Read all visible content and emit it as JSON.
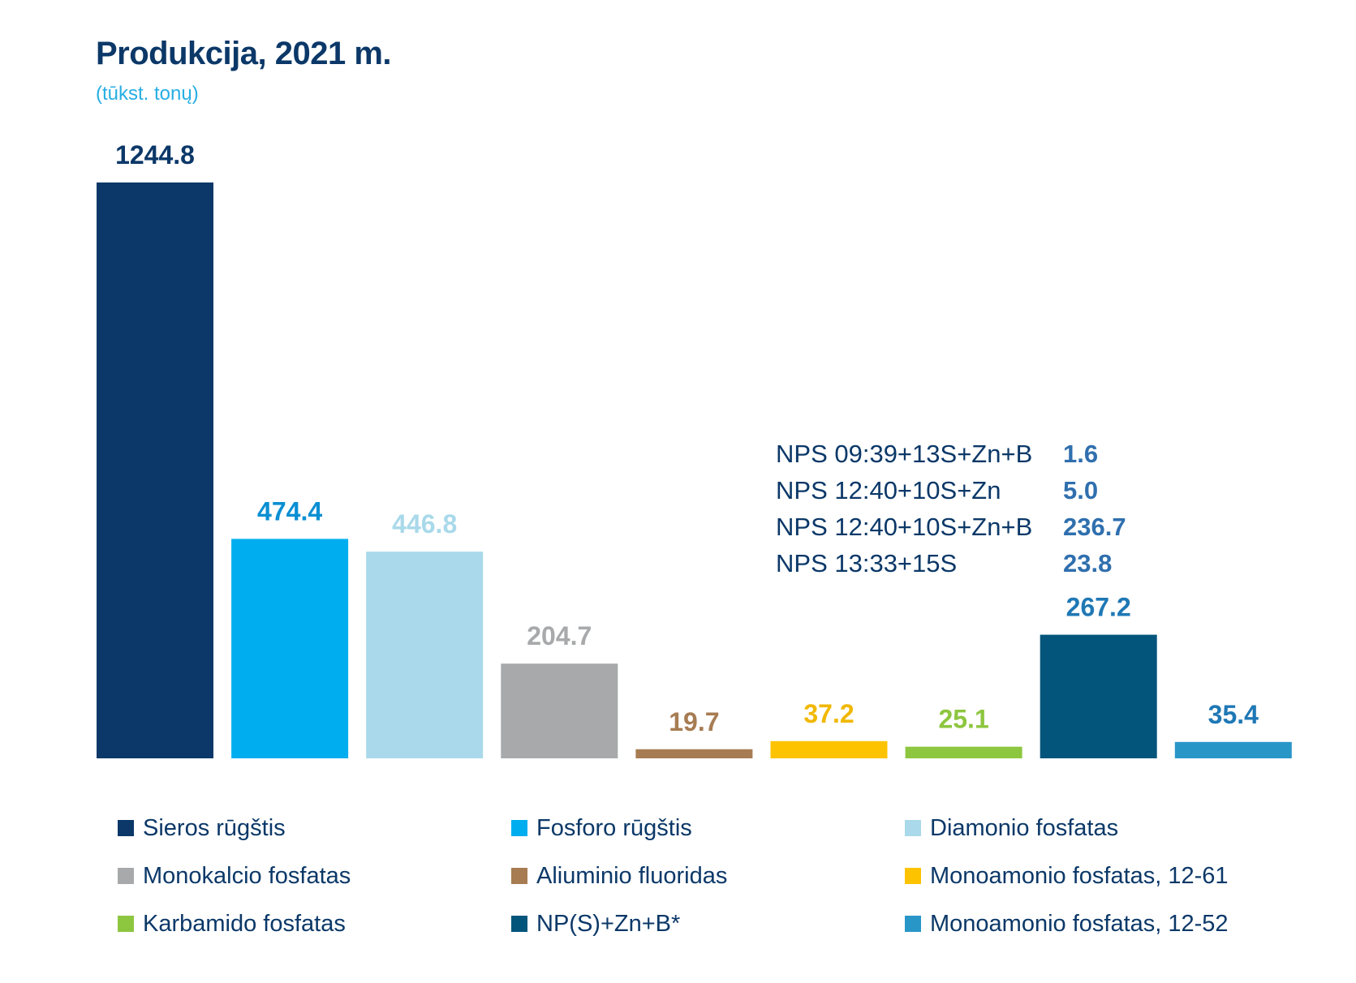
{
  "chart_data": {
    "type": "bar",
    "title": "Produkcija, 2021 m.",
    "subtitle": "(tūkst. tonų)",
    "categories": [
      "Sieros rūgštis",
      "Fosforo rūgštis",
      "Diamonio fosfatas",
      "Monokalcio fosfatas",
      "Aliuminio fluoridas",
      "Monoamonio fosfatas, 12-61",
      "Karbamido fosfatas",
      "NP(S)+Zn+B*",
      "Monoamonio fosfatas, 12-52"
    ],
    "values": [
      1244.8,
      474.4,
      446.8,
      204.7,
      19.7,
      37.2,
      25.1,
      267.2,
      35.4
    ],
    "value_labels": [
      "1244.8",
      "474.4",
      "446.8",
      "204.7",
      "19.7",
      "37.2",
      "25.1",
      "267.2",
      "35.4"
    ],
    "colors": [
      "#0b3868",
      "#00aeef",
      "#a9d9ea",
      "#a7a9ab",
      "#a77c52",
      "#fdc300",
      "#8dc63f",
      "#04557c",
      "#2996c8"
    ],
    "label_colors": [
      "#0b3868",
      "#0a8fd3",
      "#a9d9ea",
      "#a7a9ab",
      "#a77c52",
      "#f1b800",
      "#8dc63f",
      "#1f78b5",
      "#1f78b5"
    ],
    "ylim": [
      0,
      1244.8
    ],
    "grid": false,
    "legend_position": "bottom",
    "breakdown": {
      "of_category": "NP(S)+Zn+B*",
      "items": [
        {
          "label": "NPS 09:39+13S+Zn+B",
          "value": "1.6"
        },
        {
          "label": "NPS 12:40+10S+Zn",
          "value": "5.0"
        },
        {
          "label": "NPS 12:40+10S+Zn+B",
          "value": "236.7"
        },
        {
          "label": "NPS 13:33+15S",
          "value": "23.8"
        }
      ]
    }
  }
}
